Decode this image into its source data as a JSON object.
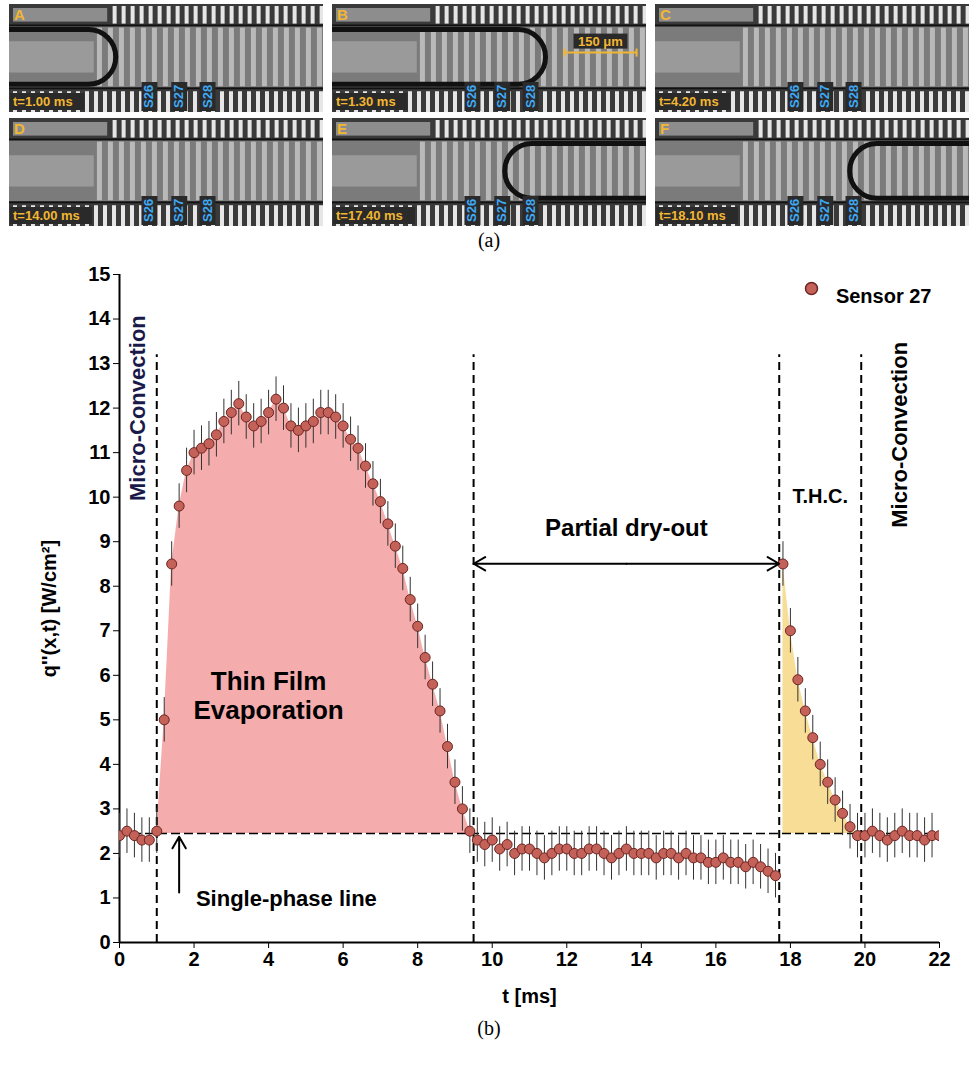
{
  "figure_a": {
    "caption": "(a)",
    "frames": [
      {
        "letter": "A",
        "time": "t=1.00 ms"
      },
      {
        "letter": "B",
        "time": "t=1.30 ms"
      },
      {
        "letter": "C",
        "time": "t=4.20 ms"
      },
      {
        "letter": "D",
        "time": "t=14.00 ms"
      },
      {
        "letter": "E",
        "time": "t=17.40 ms"
      },
      {
        "letter": "F",
        "time": "t=18.10 ms"
      }
    ],
    "sensor_labels": [
      "S26",
      "S27",
      "S28"
    ],
    "scale_bar": {
      "frame": "B",
      "label": "150 μm"
    }
  },
  "chart_data": {
    "type": "scatter",
    "caption": "(b)",
    "x_label": "t [ms]",
    "y_label": "q''(x,t) [W/cm²]",
    "xlim": [
      0,
      22
    ],
    "xticks": [
      0,
      2,
      4,
      6,
      8,
      10,
      12,
      14,
      16,
      18,
      20,
      22
    ],
    "ylim": [
      0,
      15
    ],
    "yticks": [
      0,
      1,
      2,
      3,
      4,
      5,
      6,
      7,
      8,
      9,
      10,
      11,
      12,
      13,
      14,
      15
    ],
    "legend": "top-right",
    "x": [
      0,
      0.2,
      0.4,
      0.6,
      0.8,
      1.0,
      1.2,
      1.4,
      1.6,
      1.8,
      2.0,
      2.2,
      2.4,
      2.6,
      2.8,
      3.0,
      3.2,
      3.4,
      3.6,
      3.8,
      4.0,
      4.2,
      4.4,
      4.6,
      4.8,
      5.0,
      5.2,
      5.4,
      5.6,
      5.8,
      6.0,
      6.2,
      6.4,
      6.6,
      6.8,
      7.0,
      7.2,
      7.4,
      7.6,
      7.8,
      8.0,
      8.2,
      8.4,
      8.6,
      8.8,
      9.0,
      9.2,
      9.4,
      9.6,
      9.8,
      10.0,
      10.2,
      10.4,
      10.6,
      10.8,
      11.0,
      11.2,
      11.4,
      11.6,
      11.8,
      12.0,
      12.2,
      12.4,
      12.6,
      12.8,
      13.0,
      13.2,
      13.4,
      13.6,
      13.8,
      14.0,
      14.2,
      14.4,
      14.6,
      14.8,
      15.0,
      15.2,
      15.4,
      15.6,
      15.8,
      16.0,
      16.2,
      16.4,
      16.6,
      16.8,
      17.0,
      17.2,
      17.4,
      17.6,
      17.8,
      18.0,
      18.2,
      18.4,
      18.6,
      18.8,
      19.0,
      19.2,
      19.4,
      19.6,
      19.8,
      20.0,
      20.2,
      20.4,
      20.6,
      20.8,
      21.0,
      21.2,
      21.4,
      21.6,
      21.8,
      22.0
    ],
    "series": [
      {
        "name": "Sensor 27",
        "color": "#c4625a",
        "marker": "circle",
        "error": 0.5,
        "values": [
          2.4,
          2.5,
          2.4,
          2.3,
          2.3,
          2.5,
          5.0,
          8.5,
          9.8,
          10.6,
          11.0,
          11.1,
          11.2,
          11.4,
          11.7,
          11.9,
          12.1,
          11.8,
          11.6,
          11.7,
          11.9,
          12.2,
          12.0,
          11.6,
          11.5,
          11.6,
          11.7,
          11.9,
          11.9,
          11.8,
          11.6,
          11.3,
          11.1,
          10.7,
          10.3,
          9.9,
          9.4,
          8.9,
          8.4,
          7.7,
          7.1,
          6.4,
          5.8,
          5.2,
          4.4,
          3.6,
          3.0,
          2.5,
          2.3,
          2.2,
          2.3,
          2.1,
          2.2,
          2.0,
          2.1,
          2.1,
          2.0,
          1.9,
          2.0,
          2.1,
          2.1,
          2.0,
          2.0,
          2.1,
          2.1,
          2.0,
          1.9,
          2.0,
          2.1,
          2.0,
          2.0,
          2.0,
          1.9,
          2.0,
          2.0,
          1.9,
          2.0,
          1.9,
          1.9,
          1.8,
          1.8,
          1.9,
          1.8,
          1.8,
          1.7,
          1.8,
          1.7,
          1.6,
          1.5,
          8.5,
          7.0,
          5.9,
          5.2,
          4.6,
          4.0,
          3.6,
          3.2,
          2.9,
          2.6,
          2.4,
          2.4,
          2.5,
          2.4,
          2.3,
          2.4,
          2.5,
          2.4,
          2.4,
          2.3,
          2.4,
          2.4
        ]
      }
    ],
    "single_phase_line": {
      "label": "Single-phase line",
      "value": 2.45
    },
    "phase_boundaries": [
      1.0,
      9.5,
      17.7,
      19.9
    ],
    "regions": [
      {
        "label": "Thin Film Evaporation",
        "x_range": [
          1.0,
          9.4
        ],
        "color": "#f4a3a3"
      },
      {
        "label": "T.H.C.",
        "x_range": [
          17.8,
          19.8
        ],
        "color": "#f7d98b"
      }
    ],
    "annotations": {
      "left": "Micro-Convection",
      "dry_out": "Partial dry-out",
      "right": "Micro-Convection"
    }
  }
}
